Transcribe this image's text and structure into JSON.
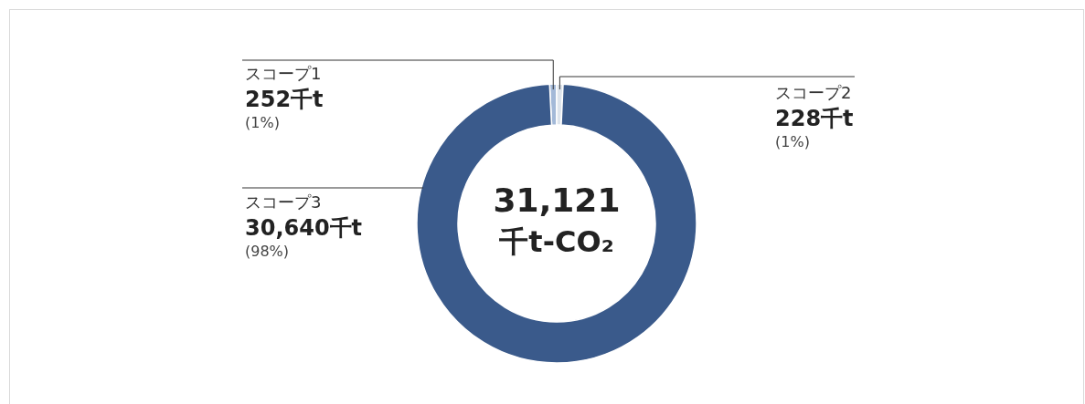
{
  "chart_data": {
    "type": "donut",
    "categories": [
      "スコープ1",
      "スコープ2",
      "スコープ3"
    ],
    "values": [
      252,
      228,
      30640
    ],
    "colors": [
      "#a3b9d8",
      "#dde4ec",
      "#3a5a8b"
    ],
    "value_labels": [
      "252千t",
      "228千t",
      "30,640千t"
    ],
    "annotations": [
      "(1%)",
      "(1%)",
      "(98%)",
      "31,121",
      "千t-CO₂"
    ]
  }
}
